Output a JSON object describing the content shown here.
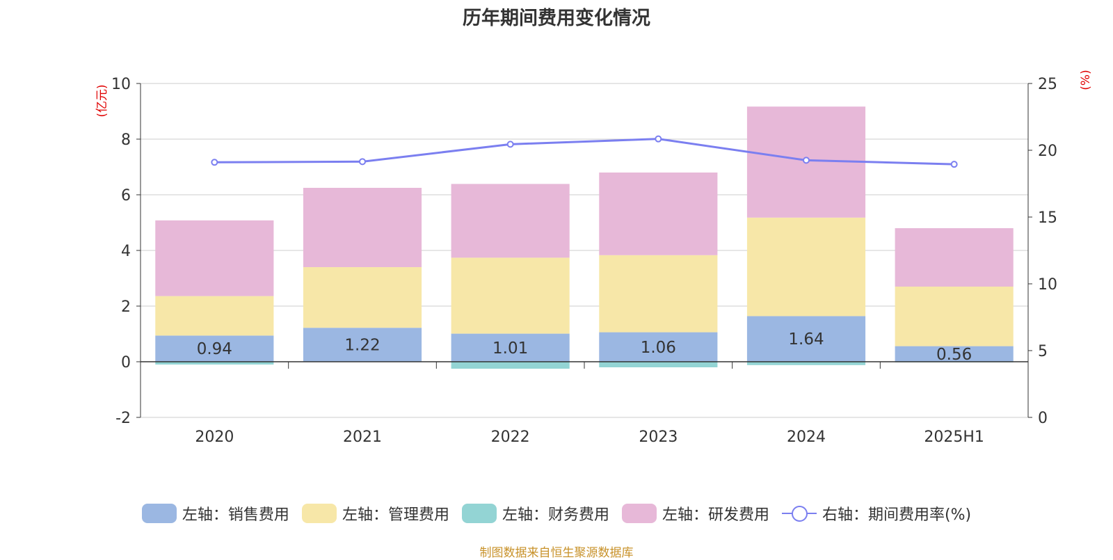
{
  "title": "历年期间费用变化情况",
  "source": "制图数据来自恒生聚源数据库",
  "chart_data": {
    "type": "bar",
    "stacked": true,
    "categories": [
      "2020",
      "2021",
      "2022",
      "2023",
      "2024",
      "2025H1"
    ],
    "left_axis": {
      "label": "(亿元)",
      "ylim": [
        -2,
        10
      ],
      "ticks": [
        "-2",
        "0",
        "2",
        "4",
        "6",
        "8",
        "10"
      ],
      "label_color": "#e00000"
    },
    "right_axis": {
      "label": "(%)",
      "ylim": [
        0,
        25
      ],
      "ticks": [
        "0",
        "5",
        "10",
        "15",
        "20",
        "25"
      ],
      "label_color": "#e00000"
    },
    "series": [
      {
        "name": "左轴：销售费用",
        "axis": "left",
        "color": "#9bb7e2",
        "values": [
          0.94,
          1.22,
          1.01,
          1.06,
          1.64,
          0.56
        ],
        "labels": [
          "0.94",
          "1.22",
          "1.01",
          "1.06",
          "1.64",
          "0.56"
        ]
      },
      {
        "name": "左轴：管理费用",
        "axis": "left",
        "color": "#f7e7a8",
        "values": [
          1.42,
          2.18,
          2.73,
          2.77,
          3.54,
          2.14
        ]
      },
      {
        "name": "左轴：财务费用",
        "axis": "left",
        "color": "#93d4d4",
        "values": [
          -0.1,
          -0.01,
          -0.25,
          -0.2,
          -0.12,
          -0.02
        ]
      },
      {
        "name": "左轴：研发费用",
        "axis": "left",
        "color": "#e7b8d8",
        "values": [
          2.72,
          2.85,
          2.65,
          2.97,
          3.99,
          2.1
        ]
      },
      {
        "name": "右轴：期间费用率(%)",
        "axis": "right",
        "type": "line",
        "color": "#7b7ff0",
        "values": [
          19.1,
          19.15,
          20.45,
          20.85,
          19.25,
          18.95
        ]
      }
    ],
    "grid": true,
    "legend_position": "bottom"
  }
}
